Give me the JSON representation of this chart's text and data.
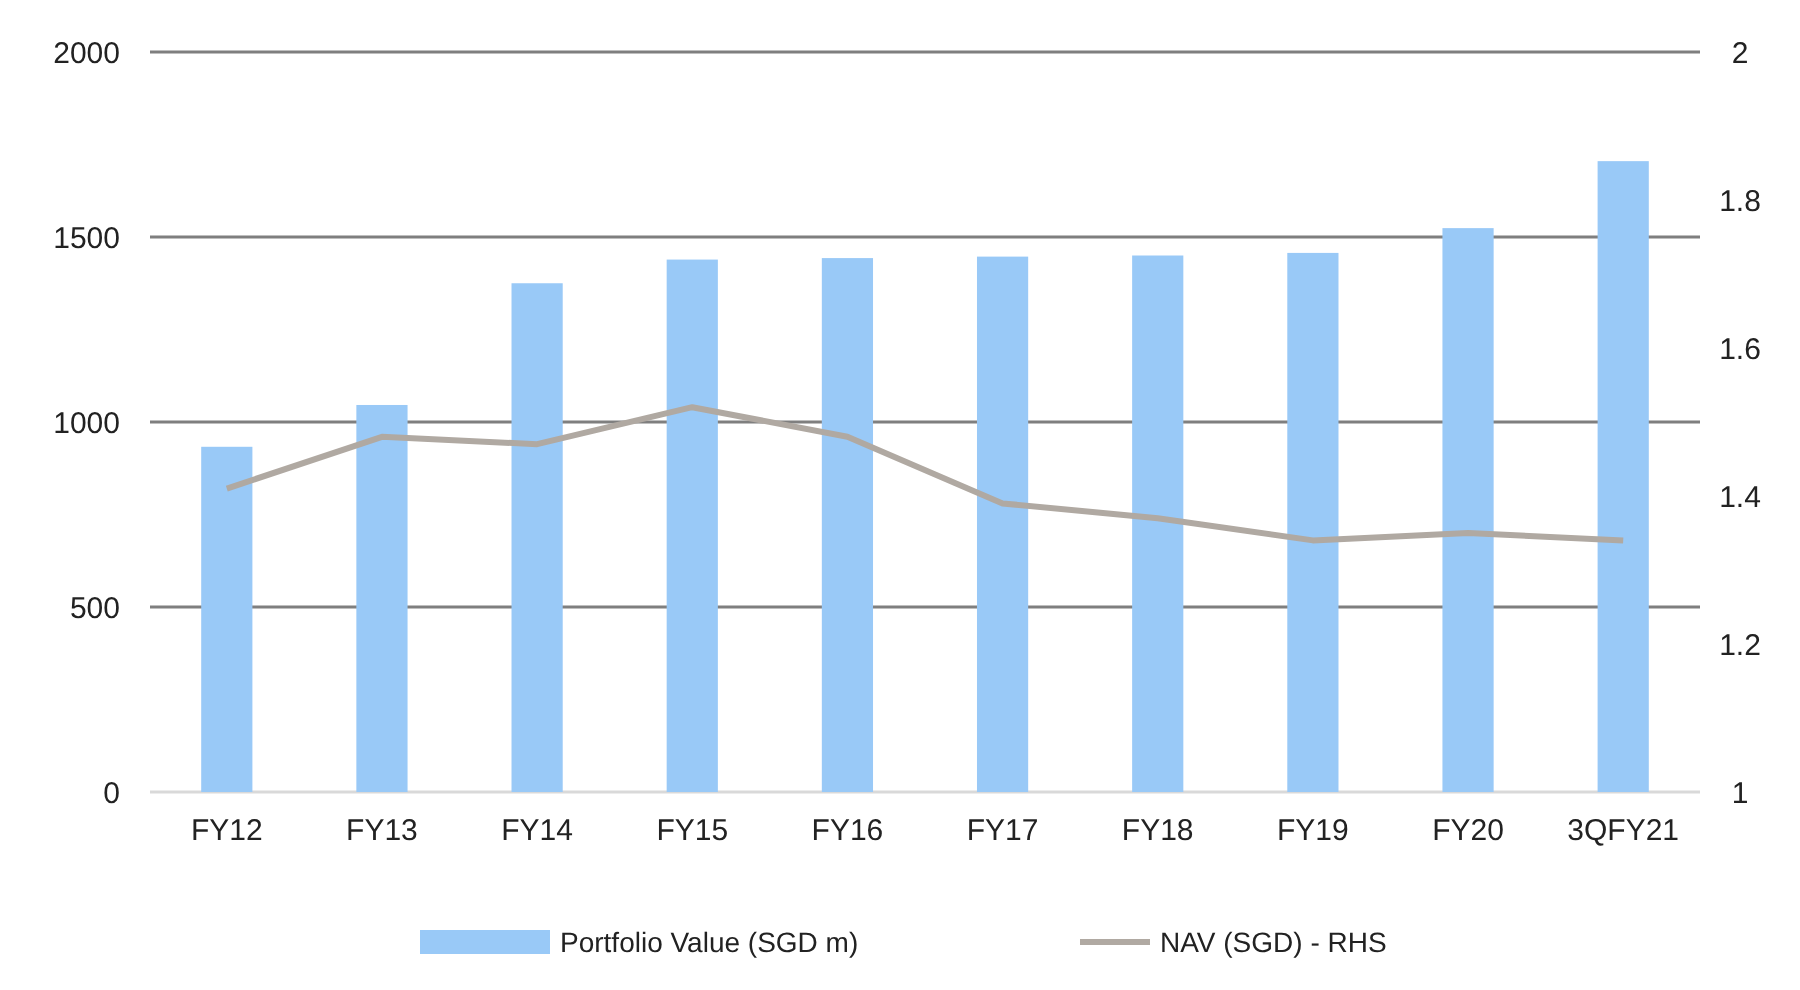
{
  "chart_data": {
    "type": "bar",
    "categories": [
      "FY12",
      "FY13",
      "FY14",
      "FY15",
      "FY16",
      "FY17",
      "FY18",
      "FY19",
      "FY20",
      "3QFY21"
    ],
    "series": [
      {
        "name": "Portfolio Value (SGD m)",
        "color": "#99c9f7",
        "values": [
          933,
          1046,
          1375,
          1439,
          1443,
          1447,
          1450,
          1457,
          1524,
          1705
        ]
      },
      {
        "name": "NAV (SGD) - RHS",
        "type": "line",
        "axis": "y2",
        "color": "#b0a9a2",
        "values": [
          1.41,
          1.48,
          1.47,
          1.52,
          1.48,
          1.39,
          1.37,
          1.34,
          1.35,
          1.34
        ]
      }
    ],
    "ylim": [
      0,
      2000
    ],
    "yticks": [
      0,
      500,
      1000,
      1500,
      2000
    ],
    "y2lim": [
      1,
      2
    ],
    "y2ticks": [
      1,
      1.2,
      1.4,
      1.6,
      1.8,
      2
    ],
    "grid": "y",
    "legend": "bottom",
    "marker": "none"
  }
}
